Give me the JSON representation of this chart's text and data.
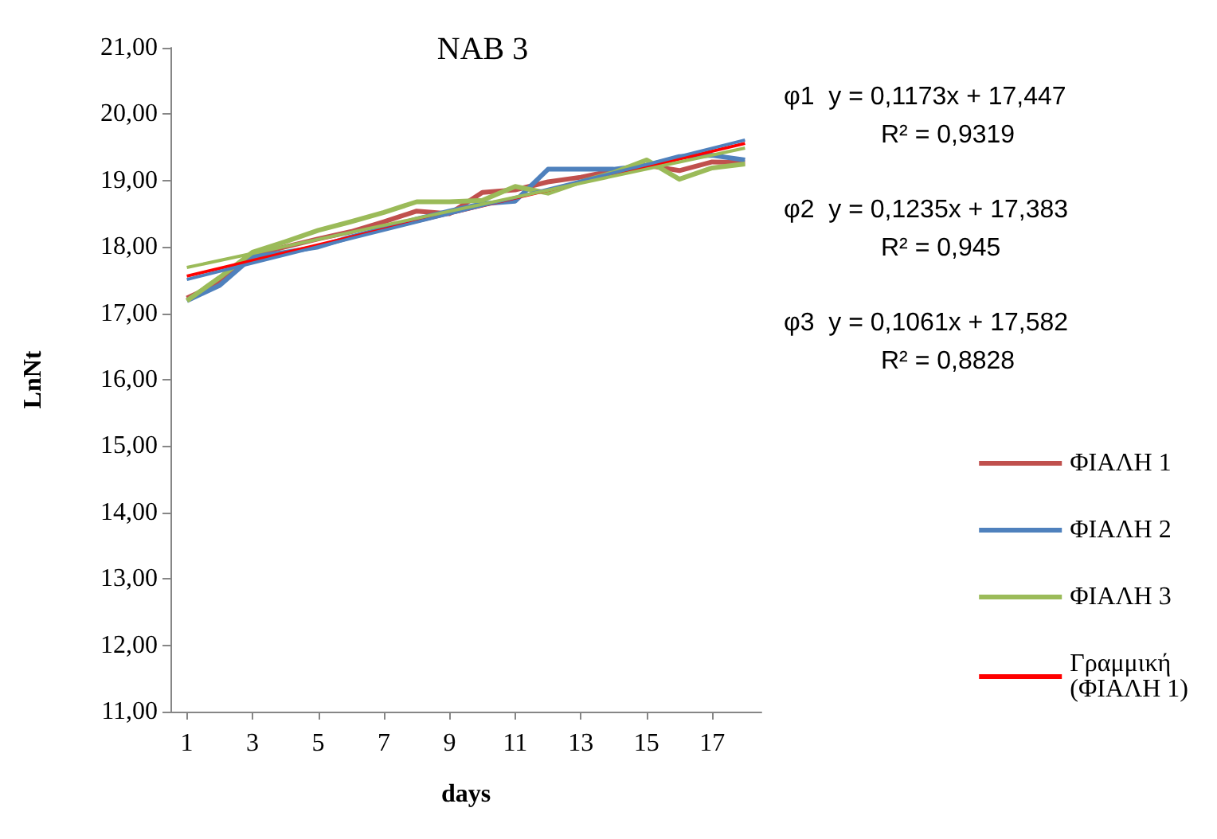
{
  "chart_data": {
    "type": "line",
    "title": "NAB 3",
    "xlabel": "days",
    "ylabel": "LnNt",
    "x": [
      1,
      2,
      3,
      4,
      5,
      6,
      7,
      8,
      9,
      10,
      11,
      12,
      13,
      14,
      15,
      16,
      17,
      18
    ],
    "xlim": [
      0.5,
      18.5
    ],
    "xticks": [
      1,
      3,
      5,
      7,
      9,
      11,
      13,
      15,
      17
    ],
    "ylim": [
      11,
      21
    ],
    "yticks": [
      {
        "value": 11,
        "label": "11,00"
      },
      {
        "value": 12,
        "label": "12,00"
      },
      {
        "value": 13,
        "label": "13,00"
      },
      {
        "value": 14,
        "label": "14,00"
      },
      {
        "value": 15,
        "label": "15,00"
      },
      {
        "value": 16,
        "label": "16,00"
      },
      {
        "value": 17,
        "label": "17,00"
      },
      {
        "value": 18,
        "label": "18,00"
      },
      {
        "value": 19,
        "label": "19,00"
      },
      {
        "value": 20,
        "label": "20,00"
      },
      {
        "value": 21,
        "label": "21,00"
      }
    ],
    "series": [
      {
        "name": "ΦΙΑΛΗ 1",
        "color": "#c0504d",
        "values": [
          17.23,
          17.46,
          17.88,
          18.0,
          18.12,
          18.23,
          18.38,
          18.54,
          18.5,
          18.82,
          18.86,
          18.98,
          19.05,
          19.15,
          19.23,
          19.15,
          19.28,
          19.27
        ]
      },
      {
        "name": "ΦΙΑΛΗ 2",
        "color": "#4f81bd",
        "values": [
          17.19,
          17.42,
          17.85,
          17.92,
          18.0,
          18.15,
          18.28,
          18.42,
          18.54,
          18.65,
          18.69,
          19.17,
          19.17,
          19.17,
          19.23,
          19.36,
          19.38,
          19.31
        ]
      },
      {
        "name": "ΦΙΑΛΗ 3",
        "color": "#9bbb59",
        "values": [
          17.19,
          17.54,
          17.92,
          18.08,
          18.25,
          18.38,
          18.52,
          18.68,
          18.68,
          18.7,
          18.91,
          18.81,
          18.98,
          19.12,
          19.31,
          19.02,
          19.19,
          19.25
        ]
      },
      {
        "name": "Γραμμική (ΦΙΑΛΗ 1)",
        "color": "#ff0000",
        "values": [
          17.56,
          null,
          null,
          null,
          null,
          null,
          null,
          null,
          null,
          null,
          null,
          null,
          null,
          null,
          null,
          null,
          null,
          19.56
        ]
      },
      {
        "color": "#4f81bd",
        "values": [
          17.51,
          null,
          null,
          null,
          null,
          null,
          null,
          null,
          null,
          null,
          null,
          null,
          null,
          null,
          null,
          null,
          null,
          19.61
        ]
      },
      {
        "color": "#9bbb59",
        "values": [
          17.69,
          null,
          null,
          null,
          null,
          null,
          null,
          null,
          null,
          null,
          null,
          null,
          null,
          null,
          null,
          null,
          null,
          19.49
        ]
      }
    ],
    "legend": "right",
    "annotations": [
      "φ1  y = 0,1173x + 17,447",
      "R² = 0,9319",
      "φ2  y = 0,1235x + 17,383",
      "R² = 0,945",
      "φ3  y = 0,1061x + 17,582",
      "R² = 0,8828"
    ]
  }
}
